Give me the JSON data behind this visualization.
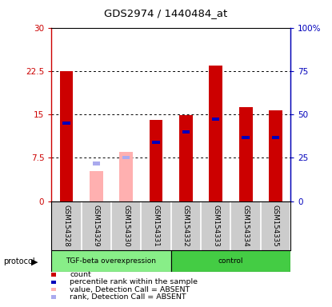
{
  "title": "GDS2974 / 1440484_at",
  "samples": [
    "GSM154328",
    "GSM154329",
    "GSM154330",
    "GSM154331",
    "GSM154332",
    "GSM154333",
    "GSM154334",
    "GSM154335"
  ],
  "red_values": [
    22.5,
    null,
    null,
    14.0,
    14.8,
    23.5,
    16.2,
    15.7
  ],
  "pink_values": [
    null,
    5.2,
    8.5,
    null,
    null,
    null,
    null,
    null
  ],
  "blue_values": [
    13.5,
    null,
    null,
    10.2,
    12.0,
    14.2,
    11.0,
    11.0
  ],
  "lblu_values": [
    null,
    6.5,
    7.5,
    null,
    null,
    null,
    null,
    null
  ],
  "ylim_left": [
    0,
    30
  ],
  "ylim_right": [
    0,
    100
  ],
  "yticks_left": [
    0,
    7.5,
    15,
    22.5,
    30
  ],
  "yticks_right": [
    0,
    25,
    50,
    75,
    100
  ],
  "ytick_labels_left": [
    "0",
    "7.5",
    "15",
    "22.5",
    "30"
  ],
  "ytick_labels_right": [
    "0",
    "25",
    "50",
    "75",
    "100%"
  ],
  "bar_width": 0.45,
  "blue_bar_height": 0.6,
  "red_color": "#cc0000",
  "pink_color": "#ffb0b0",
  "blue_color": "#0000bb",
  "lightblue_color": "#aaaaee",
  "bg_color": "#ffffff",
  "label_bg_color": "#cccccc",
  "proto1_color": "#88ee88",
  "proto2_color": "#44cc44",
  "proto1_label": "TGF-beta overexpression",
  "proto2_label": "control",
  "legend_items": [
    {
      "label": "count",
      "color": "#cc0000"
    },
    {
      "label": "percentile rank within the sample",
      "color": "#0000bb"
    },
    {
      "label": "value, Detection Call = ABSENT",
      "color": "#ffb0b0"
    },
    {
      "label": "rank, Detection Call = ABSENT",
      "color": "#aaaaee"
    }
  ]
}
